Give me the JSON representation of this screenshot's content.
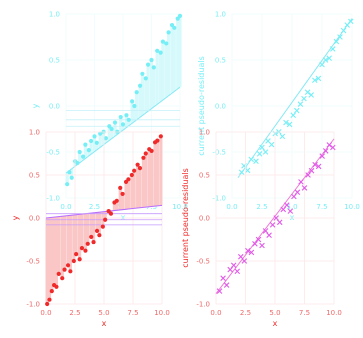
{
  "chart_data": [
    {
      "type": "scatter",
      "panel": "back-left",
      "xlabel": "x",
      "ylabel": "y",
      "xlim": [
        0,
        10
      ],
      "ylim": [
        -1,
        1
      ],
      "x_ticks": [
        "0.0",
        "2.5",
        "5.0",
        "7.5",
        "10.0"
      ],
      "y_ticks": [
        "-1.0",
        "-0.5",
        "0.0",
        "0.5",
        "1.0"
      ],
      "color": "#22e5f0",
      "shade_color": "#bdf6fa",
      "line_color": "#3adcef",
      "pivot": {
        "x": 6.2,
        "y": -0.15
      },
      "y_at_x0": -0.73,
      "x": [
        0.1,
        0.3,
        0.5,
        0.8,
        1.0,
        1.2,
        1.5,
        1.7,
        2.0,
        2.2,
        2.5,
        2.7,
        3.0,
        3.3,
        3.5,
        3.8,
        4.0,
        4.3,
        4.5,
        4.8,
        5.0,
        5.3,
        5.5,
        5.8,
        6.0,
        6.2,
        6.5,
        6.7,
        7.0,
        7.2,
        7.5,
        7.7,
        8.0,
        8.3,
        8.5,
        8.8,
        9.0,
        9.3,
        9.5,
        9.8,
        10.0
      ],
      "y": [
        -0.85,
        -0.72,
        -0.78,
        -0.6,
        -0.62,
        -0.5,
        -0.55,
        -0.42,
        -0.48,
        -0.38,
        -0.33,
        -0.4,
        -0.3,
        -0.28,
        -0.35,
        -0.22,
        -0.25,
        -0.18,
        -0.28,
        -0.12,
        -0.2,
        -0.1,
        -0.15,
        0.05,
        0.0,
        0.15,
        0.22,
        0.35,
        0.3,
        0.45,
        0.5,
        0.42,
        0.6,
        0.58,
        0.7,
        0.68,
        0.8,
        0.88,
        0.85,
        0.95,
        0.98
      ],
      "ref_lines": [
        -0.05,
        -0.15,
        -0.22
      ]
    },
    {
      "type": "scatter",
      "panel": "back-right",
      "xlabel": "x",
      "ylabel": "current pseudo-residuals",
      "xlim": [
        0,
        10
      ],
      "ylim": [
        -1,
        1
      ],
      "x_ticks": [
        "0.0",
        "2.5",
        "5.0",
        "7.5",
        "10.0"
      ],
      "y_ticks": [
        "-1.0",
        "-0.5",
        "0.0",
        "0.5",
        "1.0"
      ],
      "color": "#22e5f0",
      "line_color": "#3adcef",
      "marker": "cross",
      "x": [
        0.8,
        1.0,
        1.3,
        1.6,
        2.0,
        2.3,
        2.5,
        2.8,
        3.0,
        3.3,
        3.6,
        3.9,
        4.2,
        4.5,
        4.8,
        5.1,
        5.4,
        5.7,
        6.0,
        6.3,
        6.6,
        6.9,
        7.2,
        7.5,
        7.8,
        8.1,
        8.4,
        8.7,
        9.0,
        9.3,
        9.6,
        9.9
      ],
      "y": [
        -0.72,
        -0.65,
        -0.7,
        -0.58,
        -0.6,
        -0.52,
        -0.45,
        -0.5,
        -0.38,
        -0.42,
        -0.3,
        -0.28,
        -0.33,
        -0.18,
        -0.2,
        -0.1,
        -0.05,
        0.02,
        0.08,
        0.15,
        0.12,
        0.28,
        0.3,
        0.45,
        0.5,
        0.52,
        0.62,
        0.7,
        0.75,
        0.82,
        0.88,
        0.92
      ],
      "fit_x": [
        0.5,
        10.0
      ],
      "fit_y": [
        -0.78,
        0.95
      ]
    },
    {
      "type": "scatter",
      "panel": "front-left",
      "xlabel": "x",
      "ylabel": "y",
      "xlim": [
        0,
        10
      ],
      "ylim": [
        -1,
        1
      ],
      "x_ticks": [
        "0.0",
        "2.5",
        "5.0",
        "7.5",
        "10.0"
      ],
      "y_ticks": [
        "-1.0",
        "-0.5",
        "0.0",
        "0.5",
        "1.0"
      ],
      "color": "#f02a2a",
      "shade_color": "#fbc6c6",
      "line_color": "#b86cff",
      "pivot": {
        "x": 6.8,
        "y": 0.1
      },
      "y_at_x0": 0.0,
      "x": [
        0.1,
        0.3,
        0.5,
        0.7,
        0.9,
        1.1,
        1.4,
        1.6,
        1.9,
        2.1,
        2.4,
        2.6,
        2.9,
        3.1,
        3.4,
        3.6,
        3.9,
        4.1,
        4.4,
        4.6,
        4.9,
        5.1,
        5.4,
        5.6,
        5.9,
        6.1,
        6.4,
        6.6,
        6.9,
        7.1,
        7.4,
        7.6,
        7.9,
        8.1,
        8.4,
        8.6,
        8.9,
        9.1,
        9.4,
        9.6,
        9.9
      ],
      "y": [
        -1.0,
        -0.95,
        -0.85,
        -0.78,
        -0.8,
        -0.65,
        -0.7,
        -0.6,
        -0.55,
        -0.62,
        -0.5,
        -0.42,
        -0.48,
        -0.35,
        -0.38,
        -0.3,
        -0.22,
        -0.28,
        -0.15,
        -0.2,
        -0.1,
        -0.02,
        0.08,
        0.05,
        0.18,
        0.2,
        0.35,
        0.28,
        0.42,
        0.45,
        0.5,
        0.55,
        0.62,
        0.58,
        0.7,
        0.75,
        0.8,
        0.78,
        0.88,
        0.9,
        0.95
      ],
      "ref_lines": [
        0.05,
        -0.02,
        -0.08
      ]
    },
    {
      "type": "scatter",
      "panel": "front-right",
      "xlabel": "x",
      "ylabel": "current pseudo-residuals",
      "xlim": [
        0,
        10
      ],
      "ylim": [
        -1,
        1
      ],
      "x_ticks": [
        "0.0",
        "2.5",
        "5.0",
        "7.5",
        "10.0"
      ],
      "y_ticks": [
        "-1.0",
        "-0.5",
        "0.0",
        "0.5",
        "1.0"
      ],
      "color": "#e15ae8",
      "line_color": "#f07ad8",
      "marker": "cross",
      "x": [
        0.3,
        0.6,
        0.9,
        1.2,
        1.5,
        1.8,
        2.1,
        2.4,
        2.7,
        3.0,
        3.3,
        3.6,
        3.9,
        4.2,
        4.5,
        4.8,
        5.1,
        5.4,
        5.7,
        6.0,
        6.3,
        6.6,
        6.9,
        7.2,
        7.5,
        7.8,
        8.1,
        8.4,
        8.7,
        9.0,
        9.3,
        9.6,
        9.9
      ],
      "y": [
        -0.85,
        -0.7,
        -0.78,
        -0.6,
        -0.55,
        -0.62,
        -0.45,
        -0.5,
        -0.38,
        -0.4,
        -0.3,
        -0.25,
        -0.32,
        -0.15,
        -0.2,
        -0.08,
        0.0,
        -0.05,
        0.1,
        0.15,
        0.08,
        0.25,
        0.3,
        0.42,
        0.35,
        0.5,
        0.55,
        0.62,
        0.6,
        0.72,
        0.78,
        0.85,
        0.82
      ],
      "fit_x": [
        0.0,
        10.0
      ],
      "fit_y": [
        -0.88,
        0.92
      ]
    }
  ]
}
